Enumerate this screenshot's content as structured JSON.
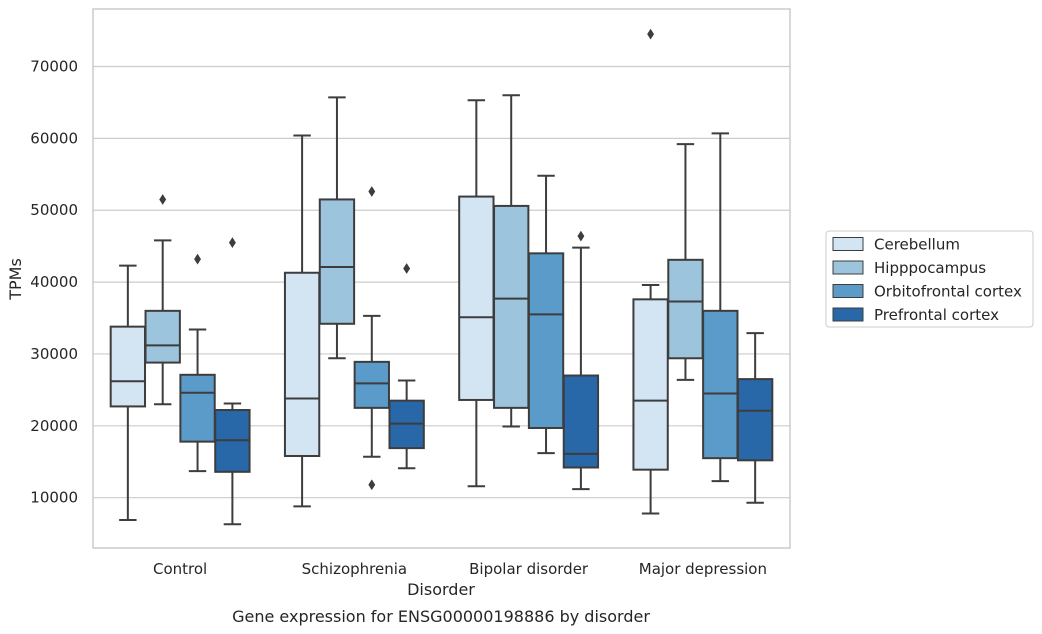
{
  "chart_data": {
    "type": "box",
    "title": "",
    "caption": "Gene expression for ENSG00000198886 by disorder",
    "xlabel": "Disorder",
    "ylabel": "TPMs",
    "ylim": [
      3000,
      78000
    ],
    "yticks": [
      10000,
      20000,
      30000,
      40000,
      50000,
      60000,
      70000
    ],
    "ytick_labels": [
      "10000",
      "20000",
      "30000",
      "40000",
      "50000",
      "60000",
      "70000"
    ],
    "grid": "horizontal",
    "legend_position": "right",
    "categories": [
      "Control",
      "Schizophrenia",
      "Bipolar disorder",
      "Major depression"
    ],
    "series": [
      {
        "name": "Cerebellum",
        "color": "#d3e4f3",
        "boxes": [
          {
            "whislo": 6900,
            "q1": 22700,
            "med": 26200,
            "q3": 33800,
            "whishi": 42300,
            "fliers": []
          },
          {
            "whislo": 8800,
            "q1": 15800,
            "med": 23800,
            "q3": 41300,
            "whishi": 60400,
            "fliers": []
          },
          {
            "whislo": 11600,
            "q1": 23600,
            "med": 35100,
            "q3": 51900,
            "whishi": 65300,
            "fliers": []
          },
          {
            "whislo": 7800,
            "q1": 13900,
            "med": 23500,
            "q3": 37600,
            "whishi": 39600,
            "fliers": [
              74500
            ]
          }
        ]
      },
      {
        "name": "Hipppocampus",
        "color": "#9cc4dd",
        "boxes": [
          {
            "whislo": 23000,
            "q1": 28800,
            "med": 31200,
            "q3": 36000,
            "whishi": 45800,
            "fliers": [
              51500
            ]
          },
          {
            "whislo": 29400,
            "q1": 34200,
            "med": 42100,
            "q3": 51500,
            "whishi": 65700,
            "fliers": []
          },
          {
            "whislo": 19900,
            "q1": 22500,
            "med": 37700,
            "q3": 50600,
            "whishi": 66000,
            "fliers": []
          },
          {
            "whislo": 26400,
            "q1": 29400,
            "med": 37300,
            "q3": 43100,
            "whishi": 59200,
            "fliers": []
          }
        ]
      },
      {
        "name": "Orbitofrontal cortex",
        "color": "#5b9bc9",
        "boxes": [
          {
            "whislo": 13700,
            "q1": 17800,
            "med": 24600,
            "q3": 27100,
            "whishi": 33400,
            "fliers": [
              43200
            ]
          },
          {
            "whislo": 15700,
            "q1": 22500,
            "med": 25900,
            "q3": 28900,
            "whishi": 35300,
            "fliers": [
              52600,
              11800
            ]
          },
          {
            "whislo": 16200,
            "q1": 19700,
            "med": 35500,
            "q3": 44000,
            "whishi": 54800,
            "fliers": []
          },
          {
            "whislo": 12300,
            "q1": 15500,
            "med": 24500,
            "q3": 36000,
            "whishi": 60700,
            "fliers": []
          }
        ]
      },
      {
        "name": "Prefrontal cortex",
        "color": "#2867a8",
        "boxes": [
          {
            "whislo": 6300,
            "q1": 13600,
            "med": 18000,
            "q3": 22200,
            "whishi": 23100,
            "fliers": [
              45500
            ]
          },
          {
            "whislo": 14100,
            "q1": 16900,
            "med": 20300,
            "q3": 23500,
            "whishi": 26300,
            "fliers": [
              41900
            ]
          },
          {
            "whislo": 11200,
            "q1": 14200,
            "med": 16100,
            "q3": 27000,
            "whishi": 44800,
            "fliers": [
              46400
            ]
          },
          {
            "whislo": 9300,
            "q1": 15200,
            "med": 22100,
            "q3": 26500,
            "whishi": 32900,
            "fliers": []
          }
        ]
      }
    ]
  }
}
